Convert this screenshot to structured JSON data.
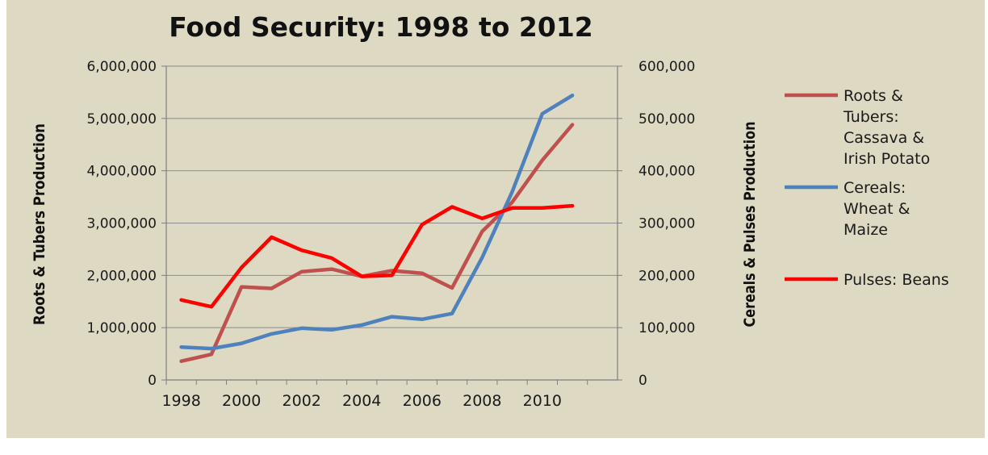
{
  "chart_data": {
    "type": "line",
    "title": "Food Security: 1998 to 2012",
    "ylabel": "Roots & Tubers Production",
    "y2label": "Cereals & Pulses Production",
    "ylim": [
      0,
      6000000
    ],
    "y2lim": [
      0,
      600000
    ],
    "yticks": [
      "0",
      "1,000,000",
      "2,000,000",
      "3,000,000",
      "4,000,000",
      "5,000,000",
      "6,000,000"
    ],
    "y2ticks": [
      "0",
      "100,000",
      "200,000",
      "300,000",
      "400,000",
      "500,000",
      "600,000"
    ],
    "x": [
      1998,
      1999,
      2000,
      2001,
      2002,
      2003,
      2004,
      2005,
      2006,
      2007,
      2008,
      2009,
      2010,
      2011
    ],
    "xticks": [
      "1998",
      "2000",
      "2002",
      "2004",
      "2006",
      "2008",
      "2010"
    ],
    "grid": true,
    "legend": "right",
    "series": [
      {
        "name": "Roots & Tubers: Cassava & Irish Potato",
        "legend_lines": [
          "Roots &",
          "Tubers:",
          "Cassava &",
          "Irish Potato"
        ],
        "axis": "left",
        "color": "#c0504d",
        "values": [
          360000,
          490000,
          1780000,
          1750000,
          2070000,
          2120000,
          1980000,
          2090000,
          2040000,
          1760000,
          2840000,
          3400000,
          4200000,
          4880000
        ]
      },
      {
        "name": "Cereals: Wheat & Maize",
        "legend_lines": [
          "Cereals:",
          "Wheat &",
          "Maize"
        ],
        "axis": "right",
        "color": "#4f81bd",
        "values": [
          63000,
          60000,
          70000,
          88000,
          99000,
          96000,
          105000,
          121000,
          116000,
          127000,
          234000,
          360000,
          509000,
          544000
        ]
      },
      {
        "name": "Pulses: Beans",
        "legend_lines": [
          "Pulses: Beans"
        ],
        "axis": "right",
        "color": "#ff0000",
        "values": [
          153000,
          140000,
          215000,
          273000,
          248000,
          233000,
          198000,
          200000,
          297000,
          331000,
          309000,
          329000,
          329000,
          333000
        ]
      }
    ]
  }
}
